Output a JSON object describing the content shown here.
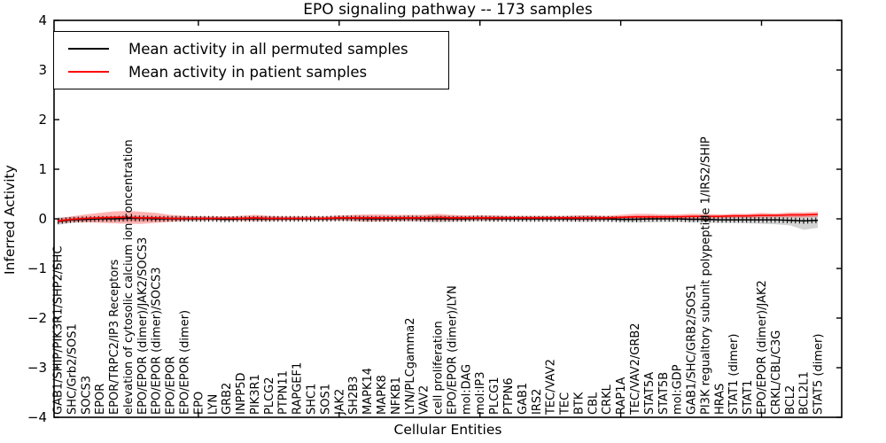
{
  "title": "EPO signaling pathway -- 173 samples",
  "axis": {
    "xlabel": "Cellular Entities",
    "ylabel": "Inferred Activity"
  },
  "legend": {
    "items": [
      {
        "label": "Mean activity in all permuted samples",
        "color": "#000000"
      },
      {
        "label": "Mean activity in patient samples",
        "color": "#ff0000"
      }
    ]
  },
  "chart_data": {
    "type": "line",
    "title": "EPO signaling pathway -- 173 samples",
    "xlabel": "Cellular Entities",
    "ylabel": "Inferred Activity",
    "ylim": [
      -4,
      4
    ],
    "yticks": [
      -4,
      -3,
      -2,
      -1,
      0,
      1,
      2,
      3,
      4
    ],
    "grid": false,
    "legend_position": "upper left",
    "x_tick_label_rotation": 90,
    "categories": [
      "GAB1/SHIP/PIK3R1/SHP2/SHC",
      "SHC/Grb2/SOS1",
      "SOCS3",
      "EPOR",
      "EPOR/TRPC2/IP3 Receptors",
      "elevation of cytosolic calcium ion concentration",
      "EPO/EPOR (dimer)/JAK2/SOCS3",
      "EPO/EPOR (dimer)/SOCS3",
      "EPO/EPOR",
      "EPO/EPOR (dimer)",
      "EPO",
      "LYN",
      "GRB2",
      "INPP5D",
      "PIK3R1",
      "PLCG2",
      "PTPN11",
      "RAPGEF1",
      "SHC1",
      "SOS1",
      "JAK2",
      "SH2B3",
      "MAPK14",
      "MAPK8",
      "NFKB1",
      "LYN/PLCgamma2",
      "VAV2",
      "cell proliferation",
      "EPO/EPOR (dimer)/LYN",
      "mol:DAG",
      "mol:IP3",
      "PLCG1",
      "PTPN6",
      "GAB1",
      "IRS2",
      "TEC/VAV2",
      "TEC",
      "BTK",
      "CBL",
      "CRKL",
      "RAP1A",
      "TEC/VAV2/GRB2",
      "STAT5A",
      "STAT5B",
      "mol:GDP",
      "GAB1/SHC/GRB2/SOS1",
      "PI3K regualtory subunit polypeptide 1/IRS2/SHIP",
      "HRAS",
      "STAT1 (dimer)",
      "STAT1",
      "EPO/EPOR (dimer)/JAK2",
      "CRKL/CBL/C3G",
      "BCL2",
      "BCL2L1",
      "STAT5 (dimer)"
    ],
    "series": [
      {
        "name": "Mean activity in all permuted samples",
        "color": "#000000",
        "band_color": "rgba(130,130,130,0.35)",
        "values": [
          -0.05,
          -0.02,
          -0.01,
          0,
          0,
          0.01,
          0.01,
          0,
          0,
          0,
          0,
          0,
          -0.01,
          0,
          0,
          0,
          0,
          0,
          0,
          0,
          0.01,
          0.01,
          0,
          0,
          0,
          0.01,
          0,
          0,
          0,
          0,
          0.01,
          0,
          0,
          0,
          0,
          0,
          0,
          0,
          0,
          0,
          -0.01,
          -0.01,
          0,
          0,
          0,
          -0.01,
          -0.01,
          -0.02,
          -0.02,
          -0.02,
          -0.02,
          -0.02,
          -0.03,
          -0.04,
          -0.03
        ],
        "band_low": [
          -0.12,
          -0.08,
          -0.06,
          -0.05,
          -0.05,
          -0.05,
          -0.05,
          -0.05,
          -0.05,
          -0.05,
          -0.05,
          -0.04,
          -0.05,
          -0.04,
          -0.05,
          -0.05,
          -0.04,
          -0.04,
          -0.04,
          -0.04,
          -0.04,
          -0.05,
          -0.06,
          -0.05,
          -0.05,
          -0.05,
          -0.06,
          -0.07,
          -0.06,
          -0.05,
          -0.05,
          -0.05,
          -0.05,
          -0.05,
          -0.05,
          -0.05,
          -0.05,
          -0.06,
          -0.06,
          -0.05,
          -0.06,
          -0.07,
          -0.07,
          -0.06,
          -0.06,
          -0.07,
          -0.08,
          -0.08,
          -0.08,
          -0.09,
          -0.1,
          -0.11,
          -0.13,
          -0.22,
          -0.18
        ],
        "band_high": [
          0.03,
          0.04,
          0.04,
          0.05,
          0.05,
          0.06,
          0.06,
          0.05,
          0.05,
          0.05,
          0.05,
          0.04,
          0.04,
          0.04,
          0.05,
          0.05,
          0.04,
          0.04,
          0.04,
          0.04,
          0.05,
          0.06,
          0.06,
          0.05,
          0.05,
          0.06,
          0.06,
          0.07,
          0.06,
          0.05,
          0.06,
          0.06,
          0.05,
          0.05,
          0.05,
          0.05,
          0.05,
          0.06,
          0.06,
          0.05,
          0.05,
          0.06,
          0.06,
          0.05,
          0.05,
          0.06,
          0.06,
          0.06,
          0.06,
          0.06,
          0.06,
          0.06,
          0.06,
          0.06,
          0.07
        ]
      },
      {
        "name": "Mean activity in patient samples",
        "color": "#ff0000",
        "band_color": "rgba(255,0,0,0.30)",
        "values": [
          -0.04,
          -0.01,
          0.01,
          0.02,
          0.03,
          0.03,
          0.02,
          0.02,
          0.01,
          0.01,
          0.01,
          0.01,
          0.01,
          0.01,
          0.02,
          0.01,
          0.01,
          0.01,
          0.01,
          0.01,
          0.02,
          0.02,
          0.02,
          0.02,
          0.02,
          0.02,
          0.02,
          0.03,
          0.02,
          0.02,
          0.02,
          0.02,
          0.02,
          0.02,
          0.02,
          0.02,
          0.02,
          0.02,
          0.02,
          0.02,
          0.03,
          0.04,
          0.04,
          0.04,
          0.04,
          0.05,
          0.05,
          0.05,
          0.06,
          0.06,
          0.07,
          0.07,
          0.08,
          0.08,
          0.09
        ],
        "band_low": [
          -0.09,
          -0.07,
          -0.07,
          -0.08,
          -0.09,
          -0.1,
          -0.1,
          -0.08,
          -0.06,
          -0.04,
          -0.03,
          -0.03,
          -0.03,
          -0.04,
          -0.04,
          -0.04,
          -0.03,
          -0.03,
          -0.03,
          -0.03,
          -0.03,
          -0.04,
          -0.05,
          -0.05,
          -0.04,
          -0.04,
          -0.04,
          -0.04,
          -0.04,
          -0.03,
          -0.03,
          -0.03,
          -0.02,
          -0.02,
          -0.02,
          -0.02,
          -0.02,
          -0.03,
          -0.03,
          -0.02,
          -0.02,
          -0.02,
          -0.02,
          -0.01,
          -0.01,
          0.0,
          0.0,
          0.01,
          0.02,
          0.02,
          0.02,
          0.03,
          0.03,
          0.03,
          0.04
        ],
        "band_high": [
          0.01,
          0.05,
          0.09,
          0.12,
          0.15,
          0.16,
          0.14,
          0.12,
          0.08,
          0.06,
          0.05,
          0.05,
          0.05,
          0.06,
          0.08,
          0.06,
          0.05,
          0.05,
          0.05,
          0.05,
          0.07,
          0.08,
          0.09,
          0.09,
          0.08,
          0.08,
          0.08,
          0.1,
          0.08,
          0.07,
          0.07,
          0.07,
          0.06,
          0.06,
          0.06,
          0.06,
          0.06,
          0.07,
          0.07,
          0.06,
          0.08,
          0.1,
          0.1,
          0.09,
          0.09,
          0.1,
          0.1,
          0.09,
          0.1,
          0.1,
          0.12,
          0.11,
          0.13,
          0.13,
          0.14
        ]
      }
    ]
  }
}
